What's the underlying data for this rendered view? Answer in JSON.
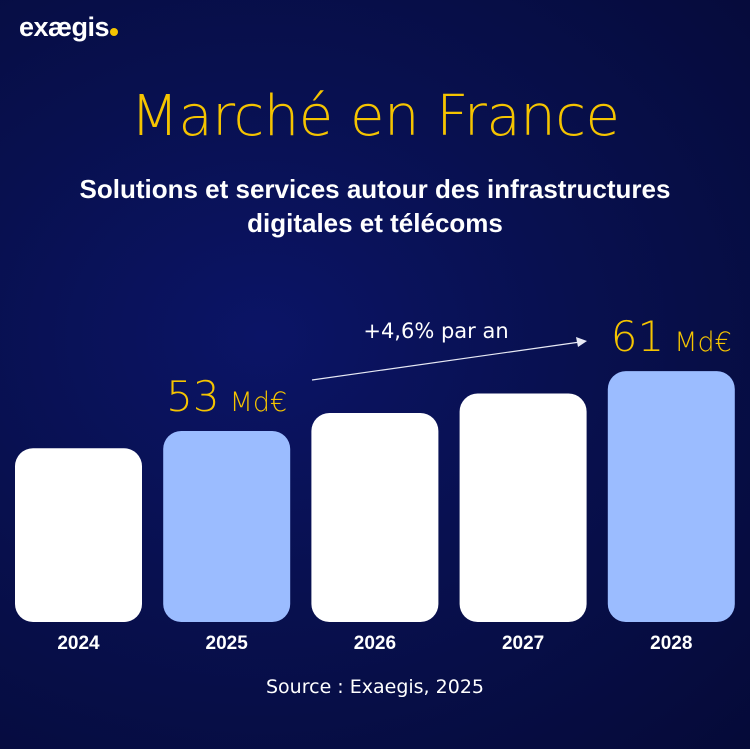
{
  "logo": {
    "text": "exægis"
  },
  "header": {
    "title": "Marché en France",
    "subtitle_line1": "Solutions et services autour des infrastructures",
    "subtitle_line2": "digitales et télécoms"
  },
  "source": "Source : Exaegis, 2025",
  "colors": {
    "accent": "#f5c400",
    "bar_white": "#ffffff",
    "bar_blue": "#9bbcff",
    "background": "#08104f"
  },
  "chart_data": {
    "type": "bar",
    "categories": [
      "2024",
      "2025",
      "2026",
      "2027",
      "2028"
    ],
    "values": [
      50.7,
      53,
      55.4,
      58.0,
      61
    ],
    "bar_colors": [
      "#ffffff",
      "#9bbcff",
      "#ffffff",
      "#ffffff",
      "#9bbcff"
    ],
    "ylim": [
      27.5,
      65
    ],
    "grid": false,
    "data_labels": [
      {
        "category": "2025",
        "value": "53",
        "unit": "Md€"
      },
      {
        "category": "2028",
        "value": "61",
        "unit": "Md€"
      }
    ],
    "annotation": "+4,6% par an"
  }
}
